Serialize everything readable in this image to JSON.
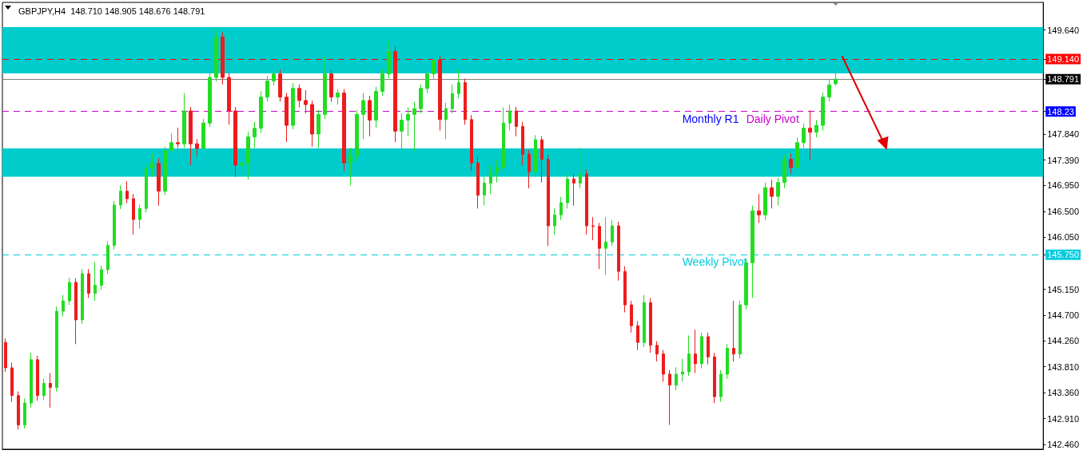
{
  "chart_data": {
    "type": "candlestick",
    "title": "GBPJPY,H4  148.710 148.905 148.676 148.791",
    "tick_labels": "y",
    "grid": false,
    "ylim": [
      142.38,
      150.12
    ],
    "yticks": [
      {
        "value": 149.64,
        "label": "149.640"
      },
      {
        "value": 149.14,
        "label": "149.140"
      },
      {
        "value": 148.791,
        "label": "148.791"
      },
      {
        "value": 148.23,
        "label": "148.23"
      },
      {
        "value": 147.84,
        "label": "147.840"
      },
      {
        "value": 147.39,
        "label": "147.390"
      },
      {
        "value": 146.95,
        "label": "146.950"
      },
      {
        "value": 146.5,
        "label": "146.500"
      },
      {
        "value": 146.05,
        "label": "146.050"
      },
      {
        "value": 145.75,
        "label": "145.750"
      },
      {
        "value": 145.15,
        "label": "145.150"
      },
      {
        "value": 144.7,
        "label": "144.700"
      },
      {
        "value": 144.26,
        "label": "144.260"
      },
      {
        "value": 143.81,
        "label": "143.810"
      },
      {
        "value": 143.36,
        "label": "143.360"
      },
      {
        "value": 142.91,
        "label": "142.910"
      },
      {
        "value": 142.46,
        "label": "142.460"
      }
    ],
    "categories": [
      null,
      null,
      null,
      null,
      null,
      null,
      null,
      null,
      null,
      null,
      null,
      null,
      null,
      null,
      null,
      null,
      null,
      null,
      null,
      null,
      null,
      null,
      null,
      null,
      null,
      null,
      null,
      null,
      null,
      null,
      null,
      null,
      null,
      null,
      null,
      null,
      null,
      null,
      null,
      null,
      null,
      null,
      null,
      null,
      null,
      null,
      null,
      null,
      null,
      null,
      null,
      null,
      null,
      null,
      null,
      null,
      null,
      null,
      null,
      null,
      null,
      null,
      null,
      null,
      null,
      null,
      null,
      null,
      null,
      null,
      null,
      null,
      null,
      null,
      null,
      null,
      null,
      null,
      null,
      null,
      null,
      null,
      null,
      null,
      null,
      null,
      null,
      null,
      null,
      null,
      null,
      null,
      null,
      null,
      null,
      null,
      null,
      null,
      null,
      null,
      null,
      null,
      null,
      null,
      null,
      null,
      null,
      null,
      null,
      null,
      null,
      null,
      null,
      null,
      null,
      null,
      null,
      null,
      null,
      null,
      null,
      null,
      null,
      null,
      null,
      null,
      null,
      null,
      null,
      null,
      null,
      null,
      null,
      null,
      null,
      null,
      null,
      null,
      null,
      null,
      null,
      null,
      null,
      null,
      null,
      null,
      null,
      null,
      null,
      null,
      null,
      null,
      null,
      null,
      null,
      null,
      null,
      null,
      null,
      null,
      null,
      null,
      null
    ],
    "ohlc": [
      [
        144.23,
        144.3,
        143.72,
        143.79
      ],
      [
        143.79,
        143.88,
        143.2,
        143.31
      ],
      [
        143.31,
        143.38,
        142.72,
        142.8
      ],
      [
        142.8,
        143.26,
        142.74,
        143.18
      ],
      [
        143.18,
        144.05,
        143.1,
        143.93
      ],
      [
        143.93,
        144.0,
        143.22,
        143.31
      ],
      [
        143.31,
        143.6,
        143.24,
        143.52
      ],
      [
        143.52,
        143.7,
        143.1,
        143.45
      ],
      [
        143.45,
        144.85,
        143.38,
        144.77
      ],
      [
        144.77,
        145.05,
        144.68,
        144.95
      ],
      [
        144.95,
        145.35,
        144.88,
        145.27
      ],
      [
        145.27,
        145.34,
        144.2,
        144.62
      ],
      [
        144.62,
        145.5,
        144.55,
        145.42
      ],
      [
        145.42,
        145.5,
        145.0,
        145.08
      ],
      [
        145.08,
        145.62,
        144.95,
        145.22
      ],
      [
        145.22,
        145.56,
        145.14,
        145.49
      ],
      [
        145.49,
        145.98,
        145.42,
        145.91
      ],
      [
        145.91,
        146.68,
        145.84,
        146.61
      ],
      [
        146.61,
        146.95,
        146.54,
        146.85
      ],
      [
        146.85,
        147.02,
        146.64,
        146.72
      ],
      [
        146.72,
        146.8,
        146.1,
        146.36
      ],
      [
        146.36,
        146.62,
        146.2,
        146.55
      ],
      [
        146.55,
        147.35,
        146.48,
        147.25
      ],
      [
        147.25,
        147.5,
        147.1,
        147.33
      ],
      [
        147.33,
        147.42,
        146.6,
        146.85
      ],
      [
        146.85,
        147.62,
        146.78,
        147.55
      ],
      [
        147.55,
        147.85,
        147.48,
        147.69
      ],
      [
        147.69,
        147.95,
        147.6,
        147.67
      ],
      [
        147.67,
        148.55,
        147.6,
        148.24
      ],
      [
        148.24,
        148.31,
        147.3,
        147.67
      ],
      [
        147.67,
        147.75,
        147.45,
        147.59
      ],
      [
        147.59,
        148.1,
        147.5,
        148.03
      ],
      [
        148.03,
        148.9,
        147.96,
        148.82
      ],
      [
        148.82,
        149.66,
        148.75,
        149.52
      ],
      [
        149.52,
        149.6,
        148.7,
        148.82
      ],
      [
        148.82,
        148.9,
        148.0,
        148.24
      ],
      [
        148.24,
        148.31,
        147.1,
        147.3
      ],
      [
        147.3,
        147.45,
        147.15,
        147.33
      ],
      [
        147.33,
        147.88,
        147.05,
        147.79
      ],
      [
        147.79,
        148.05,
        147.6,
        147.94
      ],
      [
        147.94,
        148.58,
        147.86,
        148.48
      ],
      [
        148.48,
        148.85,
        148.4,
        148.76
      ],
      [
        148.76,
        148.97,
        148.68,
        148.88
      ],
      [
        148.88,
        148.95,
        148.4,
        148.48
      ],
      [
        148.48,
        148.55,
        147.7,
        147.99
      ],
      [
        147.99,
        148.72,
        147.92,
        148.63
      ],
      [
        148.63,
        148.7,
        148.3,
        148.42
      ],
      [
        148.42,
        148.6,
        148.2,
        148.35
      ],
      [
        148.35,
        148.42,
        147.62,
        147.84
      ],
      [
        147.84,
        148.26,
        147.6,
        148.18
      ],
      [
        148.18,
        149.2,
        148.1,
        148.88
      ],
      [
        148.88,
        148.95,
        148.4,
        148.48
      ],
      [
        148.48,
        148.62,
        148.35,
        148.55
      ],
      [
        148.55,
        148.62,
        147.2,
        147.34
      ],
      [
        147.34,
        147.6,
        146.95,
        147.46
      ],
      [
        147.46,
        148.26,
        147.38,
        148.18
      ],
      [
        148.18,
        148.55,
        147.75,
        148.42
      ],
      [
        148.42,
        148.5,
        147.8,
        148.08
      ],
      [
        148.08,
        148.66,
        147.95,
        148.58
      ],
      [
        148.58,
        148.96,
        148.5,
        148.88
      ],
      [
        148.88,
        149.45,
        148.8,
        149.27
      ],
      [
        149.27,
        149.35,
        147.7,
        147.89
      ],
      [
        147.89,
        148.2,
        147.5,
        148.08
      ],
      [
        148.08,
        148.3,
        147.8,
        148.18
      ],
      [
        148.18,
        148.4,
        147.55,
        148.28
      ],
      [
        148.28,
        148.7,
        148.2,
        148.63
      ],
      [
        148.63,
        148.95,
        148.55,
        148.88
      ],
      [
        148.88,
        149.35,
        148.8,
        149.12
      ],
      [
        149.12,
        149.2,
        147.9,
        148.09
      ],
      [
        148.09,
        148.38,
        147.75,
        148.28
      ],
      [
        148.28,
        148.7,
        148.2,
        148.54
      ],
      [
        148.54,
        148.95,
        148.46,
        148.73
      ],
      [
        148.73,
        148.8,
        148.0,
        148.09
      ],
      [
        148.09,
        148.17,
        147.2,
        147.34
      ],
      [
        147.34,
        147.45,
        146.55,
        146.78
      ],
      [
        146.78,
        147.1,
        146.6,
        146.99
      ],
      [
        146.99,
        147.3,
        146.8,
        147.19
      ],
      [
        147.19,
        147.4,
        147.0,
        147.26
      ],
      [
        147.26,
        148.3,
        147.18,
        148.03
      ],
      [
        148.03,
        148.35,
        147.9,
        148.24
      ],
      [
        148.24,
        148.31,
        147.8,
        147.97
      ],
      [
        147.97,
        148.05,
        147.3,
        147.49
      ],
      [
        147.49,
        147.56,
        146.9,
        147.19
      ],
      [
        147.19,
        147.82,
        147.1,
        147.74
      ],
      [
        147.74,
        147.8,
        147.0,
        147.4
      ],
      [
        147.4,
        147.48,
        145.9,
        146.25
      ],
      [
        146.25,
        146.55,
        146.1,
        146.44
      ],
      [
        146.44,
        146.75,
        146.35,
        146.65
      ],
      [
        146.65,
        147.15,
        146.55,
        147.06
      ],
      [
        147.06,
        147.15,
        146.6,
        146.99
      ],
      [
        146.99,
        147.6,
        146.9,
        147.15
      ],
      [
        147.15,
        147.22,
        146.1,
        146.25
      ],
      [
        146.25,
        146.4,
        146.0,
        146.24
      ],
      [
        146.24,
        146.3,
        145.5,
        145.86
      ],
      [
        145.86,
        146.4,
        145.4,
        145.97
      ],
      [
        145.97,
        146.35,
        145.9,
        146.25
      ],
      [
        146.25,
        146.32,
        145.3,
        145.46
      ],
      [
        145.46,
        145.55,
        144.75,
        144.88
      ],
      [
        144.88,
        144.95,
        144.4,
        144.52
      ],
      [
        144.52,
        144.6,
        144.1,
        144.23
      ],
      [
        144.23,
        145.05,
        144.15,
        144.92
      ],
      [
        144.92,
        145.0,
        144.05,
        144.18
      ],
      [
        144.18,
        144.25,
        143.9,
        144.03
      ],
      [
        144.03,
        144.1,
        143.55,
        143.68
      ],
      [
        143.68,
        143.75,
        142.8,
        143.49
      ],
      [
        143.49,
        143.8,
        143.4,
        143.68
      ],
      [
        143.68,
        143.95,
        143.55,
        143.72
      ],
      [
        143.72,
        144.35,
        143.65,
        144.03
      ],
      [
        144.03,
        144.45,
        143.7,
        143.86
      ],
      [
        143.86,
        144.4,
        143.78,
        144.33
      ],
      [
        144.33,
        144.4,
        143.85,
        143.98
      ],
      [
        143.98,
        144.05,
        143.18,
        143.29
      ],
      [
        143.29,
        143.75,
        143.2,
        143.68
      ],
      [
        143.68,
        144.2,
        143.6,
        144.13
      ],
      [
        144.13,
        144.95,
        143.9,
        144.03
      ],
      [
        144.03,
        144.95,
        143.95,
        144.88
      ],
      [
        144.88,
        145.68,
        144.8,
        145.61
      ],
      [
        145.61,
        146.6,
        145.0,
        146.51
      ],
      [
        146.51,
        146.8,
        146.3,
        146.44
      ],
      [
        146.44,
        147.0,
        146.35,
        146.91
      ],
      [
        146.91,
        147.05,
        146.55,
        146.76
      ],
      [
        146.76,
        147.08,
        146.6,
        147.0
      ],
      [
        147.0,
        147.48,
        146.9,
        147.4
      ],
      [
        147.4,
        147.5,
        147.15,
        147.26
      ],
      [
        147.26,
        147.78,
        147.18,
        147.69
      ],
      [
        147.69,
        148.02,
        147.6,
        147.94
      ],
      [
        147.94,
        148.25,
        147.4,
        147.87
      ],
      [
        147.87,
        148.08,
        147.78,
        147.99
      ],
      [
        147.99,
        148.56,
        147.9,
        148.48
      ],
      [
        148.48,
        148.78,
        148.4,
        148.69
      ],
      [
        148.71,
        148.905,
        148.676,
        148.791
      ],
      null,
      null,
      null,
      null,
      null,
      null,
      null,
      null,
      null,
      null,
      null,
      null,
      null,
      null,
      null,
      null,
      null,
      null,
      null,
      null,
      null,
      null,
      null,
      null,
      null,
      null,
      null,
      null,
      null,
      null,
      null,
      null
    ],
    "bands": [
      {
        "axis": "y",
        "from": 148.89,
        "to": 149.69,
        "color": "#00cccc"
      },
      {
        "axis": "y",
        "from": 147.1,
        "to": 147.59,
        "color": "#00cccc"
      }
    ],
    "ref_lines": [
      {
        "axis": "y",
        "value": 149.14,
        "color": "#ff0000",
        "line_style": "dashed"
      },
      {
        "axis": "y",
        "value": 148.791,
        "color": "#808080",
        "line_style": "solid"
      },
      {
        "axis": "y",
        "value": 148.23,
        "label": "Monthly R1",
        "color": "#0000ff",
        "line_style": "dashed"
      },
      {
        "axis": "y",
        "value": 148.23,
        "label": "Daily Pivot",
        "color": "#cc00cc",
        "line_style": "dashed"
      },
      {
        "axis": "y",
        "value": 145.75,
        "label": "Weekly Pivot",
        "color": "#00ccdd",
        "line_style": "dashed"
      }
    ]
  }
}
